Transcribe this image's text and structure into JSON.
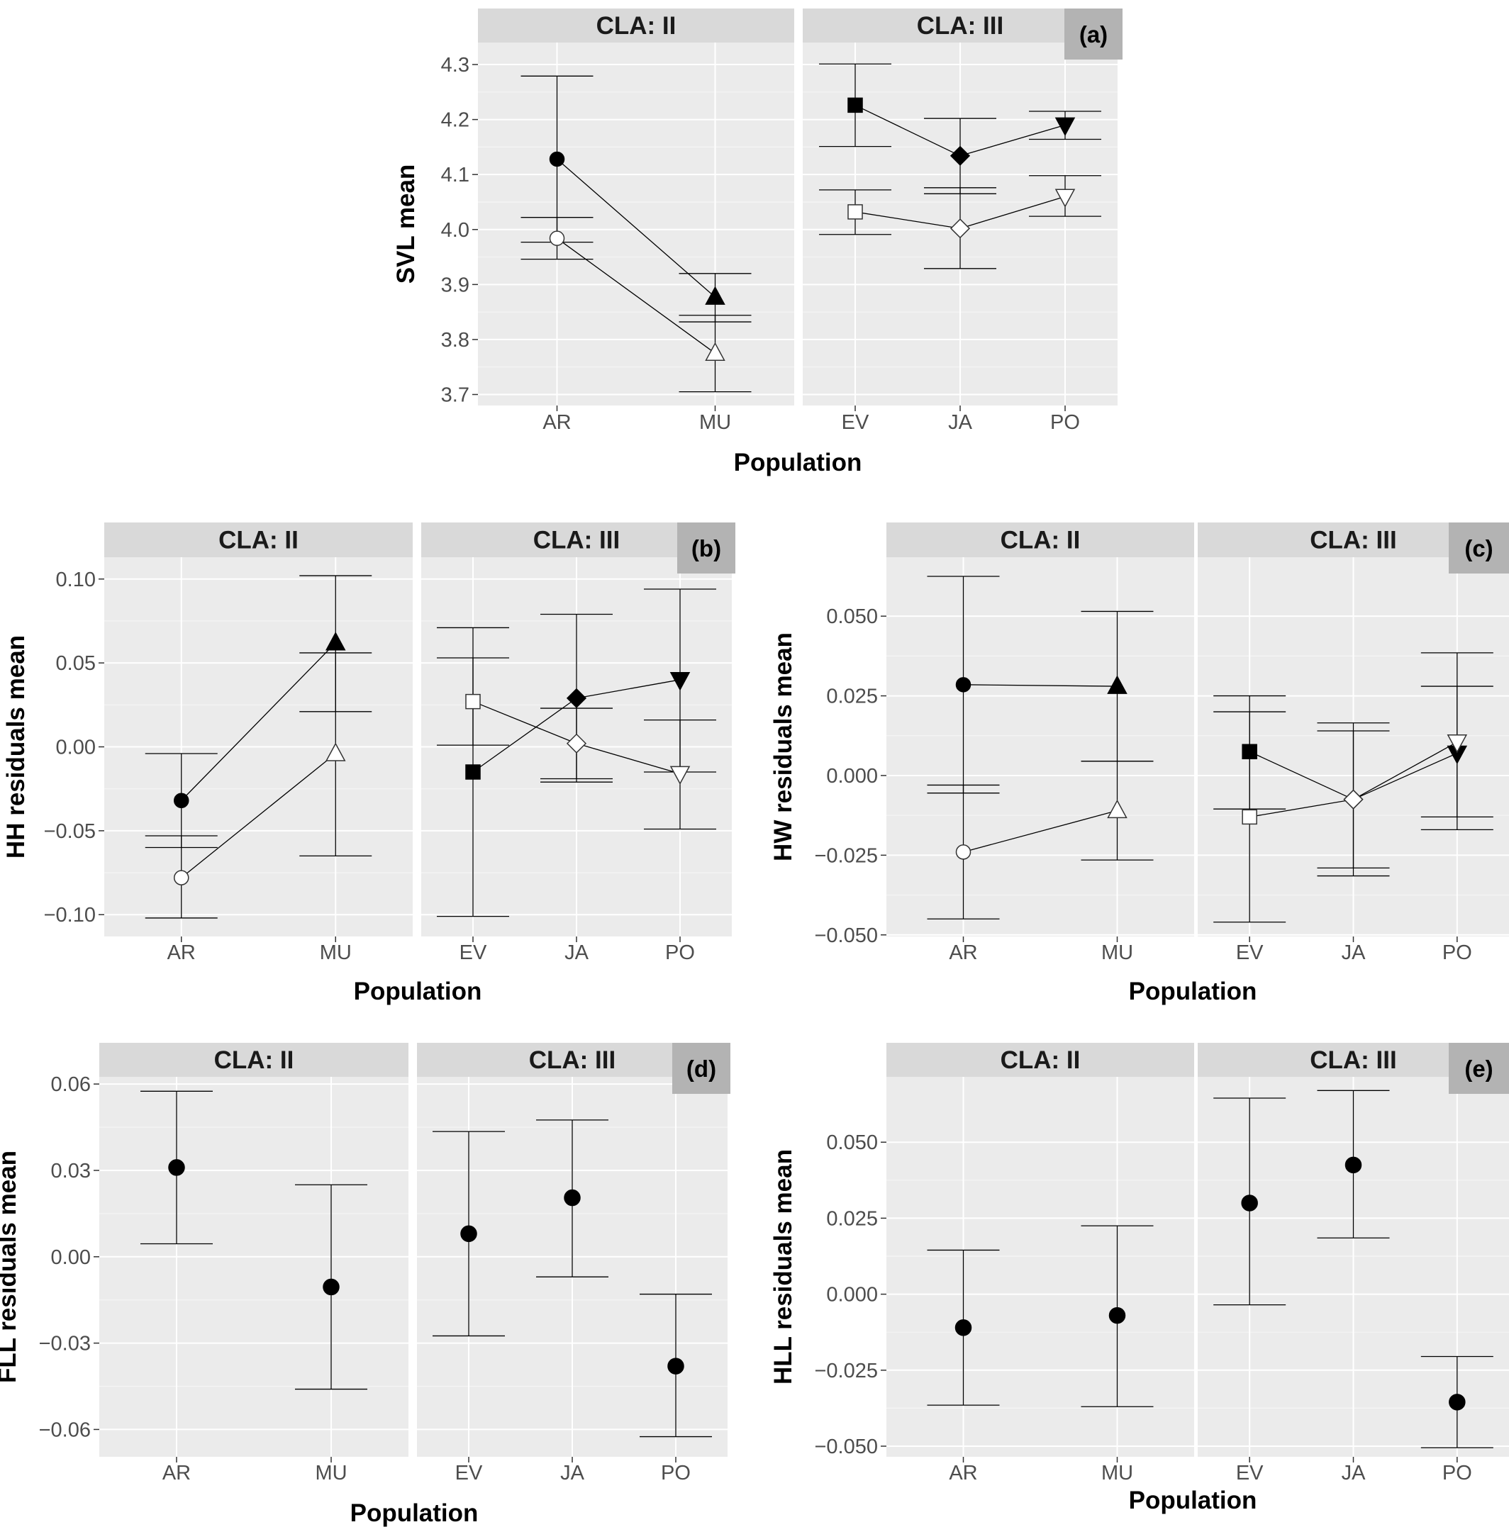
{
  "chart_data": [
    {
      "type": "scatter",
      "panel_tag": "(a)",
      "ylabel": "SVL mean",
      "xlabel": "Population",
      "ylim": [
        3.68,
        4.34
      ],
      "yticks": [
        3.7,
        3.8,
        3.9,
        4.0,
        4.1,
        4.2,
        4.3
      ],
      "ytick_labels": [
        "3.7",
        "3.8",
        "3.9",
        "4.0",
        "4.1",
        "4.2",
        "4.3"
      ],
      "facets": [
        {
          "strip": "CLA: II",
          "categories": [
            "AR",
            "MU"
          ],
          "series": [
            {
              "fill": "#000000",
              "connected": true,
              "points": [
                {
                  "x": "AR",
                  "y": 4.128,
                  "lo": 3.977,
                  "hi": 4.279,
                  "shape": "circle"
                },
                {
                  "x": "MU",
                  "y": 3.877,
                  "lo": 3.832,
                  "hi": 3.92,
                  "shape": "triangle-up"
                }
              ]
            },
            {
              "fill": "#ffffff",
              "connected": true,
              "points": [
                {
                  "x": "AR",
                  "y": 3.984,
                  "lo": 3.946,
                  "hi": 4.022,
                  "shape": "circle"
                },
                {
                  "x": "MU",
                  "y": 3.775,
                  "lo": 3.705,
                  "hi": 3.844,
                  "shape": "triangle-up"
                }
              ]
            }
          ]
        },
        {
          "strip": "CLA: III",
          "categories": [
            "EV",
            "JA",
            "PO"
          ],
          "series": [
            {
              "fill": "#000000",
              "connected": true,
              "points": [
                {
                  "x": "EV",
                  "y": 4.226,
                  "lo": 4.151,
                  "hi": 4.301,
                  "shape": "square"
                },
                {
                  "x": "JA",
                  "y": 4.134,
                  "lo": 4.065,
                  "hi": 4.202,
                  "shape": "diamond"
                },
                {
                  "x": "PO",
                  "y": 4.19,
                  "lo": 4.164,
                  "hi": 4.215,
                  "shape": "triangle-down"
                }
              ]
            },
            {
              "fill": "#ffffff",
              "connected": true,
              "points": [
                {
                  "x": "EV",
                  "y": 4.032,
                  "lo": 3.991,
                  "hi": 4.072,
                  "shape": "square"
                },
                {
                  "x": "JA",
                  "y": 4.002,
                  "lo": 3.929,
                  "hi": 4.076,
                  "shape": "diamond"
                },
                {
                  "x": "PO",
                  "y": 4.06,
                  "lo": 4.024,
                  "hi": 4.098,
                  "shape": "triangle-down"
                }
              ]
            }
          ]
        }
      ]
    },
    {
      "type": "scatter",
      "panel_tag": "(b)",
      "ylabel": "HH residuals mean",
      "xlabel": "Population",
      "ylim": [
        -0.113,
        0.113
      ],
      "yticks": [
        -0.1,
        -0.05,
        0.0,
        0.05,
        0.1
      ],
      "ytick_labels": [
        "−0.10",
        "−0.05",
        "0.00",
        "0.05",
        "0.10"
      ],
      "facets": [
        {
          "strip": "CLA: II",
          "categories": [
            "AR",
            "MU"
          ],
          "series": [
            {
              "fill": "#000000",
              "connected": true,
              "points": [
                {
                  "x": "AR",
                  "y": -0.032,
                  "lo": -0.06,
                  "hi": -0.004,
                  "shape": "circle"
                },
                {
                  "x": "MU",
                  "y": 0.062,
                  "lo": 0.021,
                  "hi": 0.102,
                  "shape": "triangle-up"
                }
              ]
            },
            {
              "fill": "#ffffff",
              "connected": true,
              "points": [
                {
                  "x": "AR",
                  "y": -0.078,
                  "lo": -0.102,
                  "hi": -0.053,
                  "shape": "circle"
                },
                {
                  "x": "MU",
                  "y": -0.004,
                  "lo": -0.065,
                  "hi": 0.056,
                  "shape": "triangle-up"
                }
              ]
            }
          ]
        },
        {
          "strip": "CLA: III",
          "categories": [
            "EV",
            "JA",
            "PO"
          ],
          "series": [
            {
              "fill": "#000000",
              "connected": true,
              "points": [
                {
                  "x": "EV",
                  "y": -0.015,
                  "lo": -0.101,
                  "hi": 0.071,
                  "shape": "square"
                },
                {
                  "x": "JA",
                  "y": 0.029,
                  "lo": -0.021,
                  "hi": 0.079,
                  "shape": "diamond"
                },
                {
                  "x": "PO",
                  "y": 0.04,
                  "lo": -0.015,
                  "hi": 0.094,
                  "shape": "triangle-down"
                }
              ]
            },
            {
              "fill": "#ffffff",
              "connected": true,
              "points": [
                {
                  "x": "EV",
                  "y": 0.027,
                  "lo": 0.001,
                  "hi": 0.053,
                  "shape": "square"
                },
                {
                  "x": "JA",
                  "y": 0.002,
                  "lo": -0.019,
                  "hi": 0.023,
                  "shape": "diamond"
                },
                {
                  "x": "PO",
                  "y": -0.016,
                  "lo": -0.049,
                  "hi": 0.016,
                  "shape": "triangle-down"
                }
              ]
            }
          ]
        }
      ]
    },
    {
      "type": "scatter",
      "panel_tag": "(c)",
      "ylabel": "HW residuals mean",
      "xlabel": "Population",
      "ylim": [
        -0.0505,
        0.0685
      ],
      "yticks": [
        -0.05,
        -0.025,
        0.0,
        0.025,
        0.05
      ],
      "ytick_labels": [
        "−0.050",
        "−0.025",
        "0.000",
        "0.025",
        "0.050"
      ],
      "facets": [
        {
          "strip": "CLA: II",
          "categories": [
            "AR",
            "MU"
          ],
          "series": [
            {
              "fill": "#000000",
              "connected": true,
              "points": [
                {
                  "x": "AR",
                  "y": 0.0285,
                  "lo": -0.0055,
                  "hi": 0.0625,
                  "shape": "circle"
                },
                {
                  "x": "MU",
                  "y": 0.028,
                  "lo": 0.0045,
                  "hi": 0.0515,
                  "shape": "triangle-up"
                }
              ]
            },
            {
              "fill": "#ffffff",
              "connected": true,
              "points": [
                {
                  "x": "AR",
                  "y": -0.024,
                  "lo": -0.045,
                  "hi": -0.003,
                  "shape": "circle"
                },
                {
                  "x": "MU",
                  "y": -0.011,
                  "lo": -0.0265,
                  "hi": 0.0045,
                  "shape": "triangle-up"
                }
              ]
            }
          ]
        },
        {
          "strip": "CLA: III",
          "categories": [
            "EV",
            "JA",
            "PO"
          ],
          "series": [
            {
              "fill": "#000000",
              "connected": true,
              "points": [
                {
                  "x": "EV",
                  "y": 0.0075,
                  "lo": -0.0105,
                  "hi": 0.025,
                  "shape": "square"
                },
                {
                  "x": "JA",
                  "y": -0.0075,
                  "lo": -0.029,
                  "hi": 0.014,
                  "shape": "diamond"
                },
                {
                  "x": "PO",
                  "y": 0.007,
                  "lo": -0.013,
                  "hi": 0.028,
                  "shape": "triangle-down"
                }
              ]
            },
            {
              "fill": "#ffffff",
              "connected": true,
              "points": [
                {
                  "x": "EV",
                  "y": -0.013,
                  "lo": -0.046,
                  "hi": 0.02,
                  "shape": "square"
                },
                {
                  "x": "JA",
                  "y": -0.0075,
                  "lo": -0.0315,
                  "hi": 0.0165,
                  "shape": "diamond"
                },
                {
                  "x": "PO",
                  "y": 0.0105,
                  "lo": -0.017,
                  "hi": 0.0385,
                  "shape": "triangle-down"
                }
              ]
            }
          ]
        }
      ]
    },
    {
      "type": "scatter",
      "panel_tag": "(d)",
      "ylabel": "FLL residuals mean",
      "xlabel": "Population",
      "ylim": [
        -0.0695,
        0.0625
      ],
      "yticks": [
        -0.06,
        -0.03,
        0.0,
        0.03,
        0.06
      ],
      "ytick_labels": [
        "−0.06",
        "−0.03",
        "0.00",
        "0.03",
        "0.06"
      ],
      "facets": [
        {
          "strip": "CLA: II",
          "categories": [
            "AR",
            "MU"
          ],
          "series": [
            {
              "fill": "#000000",
              "connected": false,
              "points": [
                {
                  "x": "AR",
                  "y": 0.031,
                  "lo": 0.0045,
                  "hi": 0.0575,
                  "shape": "circle"
                },
                {
                  "x": "MU",
                  "y": -0.0105,
                  "lo": -0.046,
                  "hi": 0.025,
                  "shape": "circle"
                }
              ]
            }
          ]
        },
        {
          "strip": "CLA: III",
          "categories": [
            "EV",
            "JA",
            "PO"
          ],
          "series": [
            {
              "fill": "#000000",
              "connected": false,
              "points": [
                {
                  "x": "EV",
                  "y": 0.008,
                  "lo": -0.0275,
                  "hi": 0.0435,
                  "shape": "circle"
                },
                {
                  "x": "JA",
                  "y": 0.0205,
                  "lo": -0.007,
                  "hi": 0.0475,
                  "shape": "circle"
                },
                {
                  "x": "PO",
                  "y": -0.038,
                  "lo": -0.0625,
                  "hi": -0.013,
                  "shape": "circle"
                }
              ]
            }
          ]
        }
      ]
    },
    {
      "type": "scatter",
      "panel_tag": "(e)",
      "ylabel": "HLL residuals mean",
      "xlabel": "Population",
      "ylim": [
        -0.0535,
        0.0715
      ],
      "yticks": [
        -0.05,
        -0.025,
        0.0,
        0.025,
        0.05
      ],
      "ytick_labels": [
        "−0.050",
        "−0.025",
        "0.000",
        "0.025",
        "0.050"
      ],
      "facets": [
        {
          "strip": "CLA: II",
          "categories": [
            "AR",
            "MU"
          ],
          "series": [
            {
              "fill": "#000000",
              "connected": false,
              "points": [
                {
                  "x": "AR",
                  "y": -0.011,
                  "lo": -0.0365,
                  "hi": 0.0145,
                  "shape": "circle"
                },
                {
                  "x": "MU",
                  "y": -0.007,
                  "lo": -0.037,
                  "hi": 0.0225,
                  "shape": "circle"
                }
              ]
            }
          ]
        },
        {
          "strip": "CLA: III",
          "categories": [
            "EV",
            "JA",
            "PO"
          ],
          "series": [
            {
              "fill": "#000000",
              "connected": false,
              "points": [
                {
                  "x": "EV",
                  "y": 0.03,
                  "lo": -0.0035,
                  "hi": 0.0645,
                  "shape": "circle"
                },
                {
                  "x": "JA",
                  "y": 0.0425,
                  "lo": 0.0185,
                  "hi": 0.067,
                  "shape": "circle"
                },
                {
                  "x": "PO",
                  "y": -0.0355,
                  "lo": -0.0505,
                  "hi": -0.0205,
                  "shape": "circle"
                }
              ]
            }
          ]
        }
      ]
    }
  ]
}
